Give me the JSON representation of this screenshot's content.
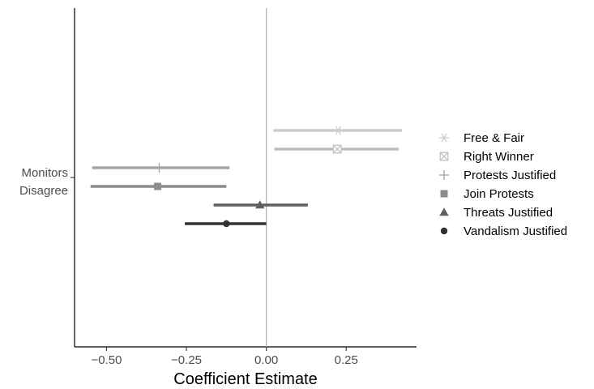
{
  "chart_data": {
    "type": "coefficient-plot",
    "xlabel": "Coefficient Estimate",
    "ylabel": "",
    "xlim": [
      -0.6,
      0.47
    ],
    "x_ticks": [
      -0.5,
      -0.25,
      0.0,
      0.25
    ],
    "x_tick_labels": [
      "−0.50",
      "−0.25",
      "0.00",
      "0.25"
    ],
    "reference_line_x": 0,
    "category_label_lines": [
      "Monitors",
      "Disagree"
    ],
    "legend_position": "right",
    "grid": false,
    "series": [
      {
        "name": "Free & Fair",
        "estimate": 0.225,
        "ci_low": 0.022,
        "ci_high": 0.425,
        "color": "#cccccc",
        "marker": "asterisk"
      },
      {
        "name": "Right Winner",
        "estimate": 0.222,
        "ci_low": 0.025,
        "ci_high": 0.415,
        "color": "#bdbdbd",
        "marker": "boxed-x"
      },
      {
        "name": "Protests Justified",
        "estimate": -0.335,
        "ci_low": -0.545,
        "ci_high": -0.115,
        "color": "#a6a6a6",
        "marker": "plus"
      },
      {
        "name": "Join Protests",
        "estimate": -0.34,
        "ci_low": -0.55,
        "ci_high": -0.125,
        "color": "#8c8c8c",
        "marker": "square"
      },
      {
        "name": "Threats Justified",
        "estimate": -0.02,
        "ci_low": -0.165,
        "ci_high": 0.13,
        "color": "#5f5f5f",
        "marker": "triangle"
      },
      {
        "name": "Vandalism Justified",
        "estimate": -0.125,
        "ci_low": -0.255,
        "ci_high": 0.0,
        "color": "#333333",
        "marker": "circle"
      }
    ]
  }
}
